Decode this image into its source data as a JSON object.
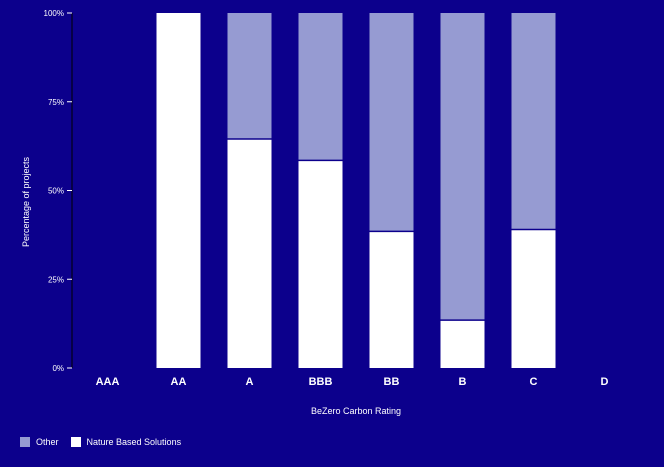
{
  "chart_data": {
    "type": "bar",
    "stacked": true,
    "categories": [
      "AAA",
      "AA",
      "A",
      "BBB",
      "BB",
      "B",
      "C",
      "D"
    ],
    "series": [
      {
        "name": "Nature Based Solutions",
        "color": "#ffffff",
        "values": [
          0,
          100,
          64.5,
          58.5,
          38.5,
          13.5,
          39,
          0
        ]
      },
      {
        "name": "Other",
        "color": "#969bd2",
        "values": [
          0,
          0,
          35.5,
          41.5,
          61.5,
          86.5,
          61,
          0
        ]
      }
    ],
    "xlabel": "BeZero Carbon Rating",
    "ylabel": "Percentage of projects",
    "ylim": [
      0,
      100
    ],
    "yticks": [
      0,
      25,
      50,
      75,
      100
    ],
    "ytick_labels": [
      "0%",
      "25%",
      "50%",
      "75%",
      "100%"
    ],
    "grid": false,
    "legend_position": "bottom-left",
    "background": "#0c008c"
  },
  "legend": {
    "items": [
      {
        "label": "Other",
        "color": "#969bd2"
      },
      {
        "label": "Nature Based Solutions",
        "color": "#ffffff"
      }
    ]
  }
}
